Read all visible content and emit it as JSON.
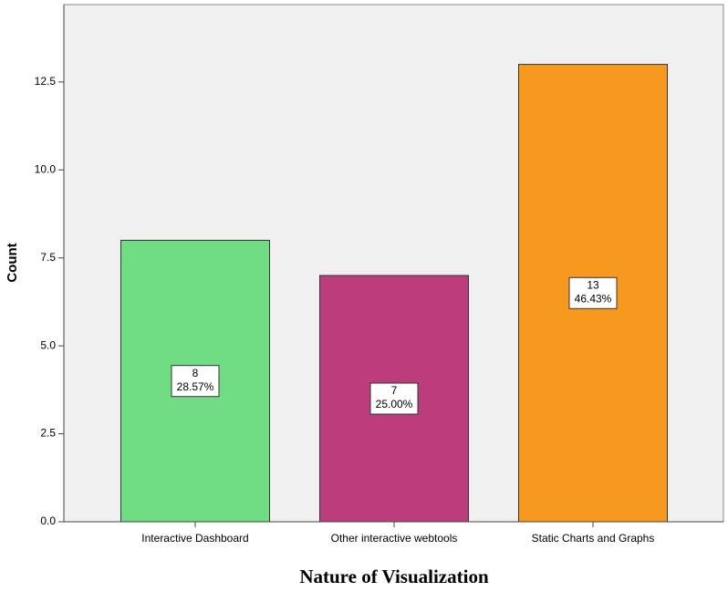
{
  "chart_data": {
    "type": "bar",
    "categories": [
      "Interactive Dashboard",
      "Other interactive webtools",
      "Static Charts and Graphs"
    ],
    "values": [
      8,
      7,
      13
    ],
    "percentages": [
      28.57,
      25.0,
      46.43
    ],
    "percentage_labels": [
      "28.57%",
      "25.00%",
      "46.43%"
    ],
    "colors": [
      "#70dc84",
      "#bb3d7b",
      "#f7991e"
    ],
    "x_label": "Nature of Visualization",
    "y_label": "Count",
    "ylim": [
      0,
      14.7
    ],
    "yticks": [
      {
        "value": 0,
        "label": "0.0"
      },
      2.5,
      {
        "value": 5,
        "label": "5.0"
      },
      7.5,
      {
        "value": 10,
        "label": "10.0"
      },
      12.5
    ]
  }
}
